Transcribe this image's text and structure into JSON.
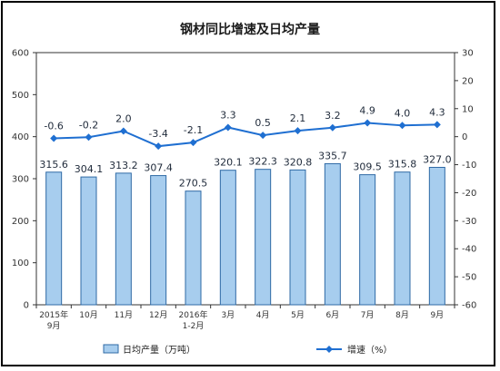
{
  "chart_data": {
    "type": "bar+line",
    "title": "钢材同比增速及日均产量",
    "categories": [
      [
        "2015年",
        "9月"
      ],
      [
        "10月"
      ],
      [
        "11月"
      ],
      [
        "12月"
      ],
      [
        "2016年",
        "1-2月"
      ],
      [
        "3月"
      ],
      [
        "4月"
      ],
      [
        "5月"
      ],
      [
        "6月"
      ],
      [
        "7月"
      ],
      [
        "8月"
      ],
      [
        "9月"
      ]
    ],
    "series": [
      {
        "name": "日均产量（万吨）",
        "type": "bar",
        "axis": "left",
        "values": [
          315.6,
          304.1,
          313.2,
          307.4,
          270.5,
          320.1,
          322.3,
          320.8,
          335.7,
          309.5,
          315.8,
          327.0
        ],
        "labels": [
          "315.6",
          "304.1",
          "313.2",
          "307.4",
          "270.5",
          "320.1",
          "322.3",
          "320.8",
          "335.7",
          "309.5",
          "315.8",
          "327.0"
        ]
      },
      {
        "name": "增速（%）",
        "type": "line",
        "axis": "right",
        "values": [
          -0.6,
          -0.2,
          2.0,
          -3.4,
          -2.1,
          3.3,
          0.5,
          2.1,
          3.2,
          4.9,
          4.0,
          4.3
        ],
        "labels": [
          "-0.6",
          "-0.2",
          "2.0",
          "-3.4",
          "-2.1",
          "3.3",
          "0.5",
          "2.1",
          "3.2",
          "4.9",
          "4.0",
          "4.3"
        ]
      }
    ],
    "y_left": {
      "min": 0,
      "max": 600,
      "ticks": [
        "0",
        "100",
        "200",
        "300",
        "400",
        "500",
        "600"
      ]
    },
    "y_right": {
      "min": -60,
      "max": 30,
      "ticks": [
        "-60",
        "-50",
        "-40",
        "-30",
        "-20",
        "-10",
        "0",
        "10",
        "20",
        "30"
      ]
    },
    "legend_position": "bottom",
    "colors": {
      "bar_fill": "#a7cdee",
      "bar_stroke": "#2f6aa5",
      "line": "#1f6fd1",
      "axis": "#333333"
    }
  }
}
